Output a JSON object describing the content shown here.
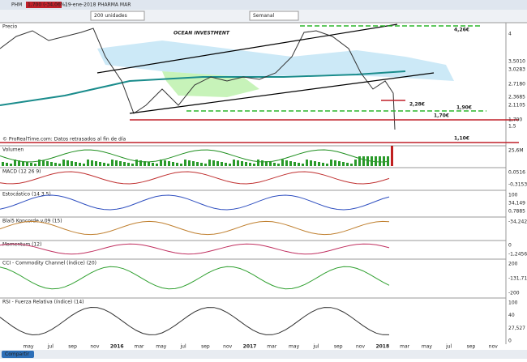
{
  "toolbar": {
    "symbol": "PHM",
    "change": "1,700 (-34,06%)",
    "date_name": "19-ene-2018 PHARMA MAR",
    "quantity": "200 unidades",
    "period": "Semanal"
  },
  "price_panel": {
    "label": "Precio",
    "watermark": "OCEAN INVESTMENT",
    "levels": [
      "4,26€",
      "2,28€",
      "1,90€",
      "1,70€",
      "1,10€"
    ],
    "axis": [
      "4",
      "3,5010",
      "3,0283",
      "2,7180",
      "2,3685",
      "2,1105",
      "1,700",
      "1,5"
    ],
    "note": "© ProRealTime.com: Datos retrasados al fin de día"
  },
  "panels": [
    {
      "title": "Volumen",
      "axis": [
        "25,6M"
      ]
    },
    {
      "title": "MACD (12 26 9)",
      "axis": [
        "0,0516",
        "-0,3153"
      ]
    },
    {
      "title": "Estocástico (14 3 5)",
      "axis": [
        "100",
        "34,149",
        "0,7885"
      ]
    },
    {
      "title": "Blai5 Koncorde v.09 (15)",
      "axis": [
        "-34,242"
      ]
    },
    {
      "title": "Momentum (12)",
      "axis": [
        "0",
        "-1,2456"
      ]
    },
    {
      "title": "CCI - Commodity Channel (índice) (20)",
      "axis": [
        "200",
        "-131,71",
        "-200"
      ]
    },
    {
      "title": "RSI - Fuerza Relativa (índice) (14)",
      "axis": [
        "100",
        "40",
        "27,527",
        "0"
      ]
    }
  ],
  "x_axis": [
    "may",
    "jul",
    "sep",
    "nov",
    "2016",
    "mar",
    "may",
    "jul",
    "sep",
    "nov",
    "2017",
    "mar",
    "may",
    "jul",
    "sep",
    "nov",
    "2018",
    "mar",
    "may",
    "jul",
    "sep",
    "nov"
  ],
  "footer": {
    "share": "Compartir"
  }
}
